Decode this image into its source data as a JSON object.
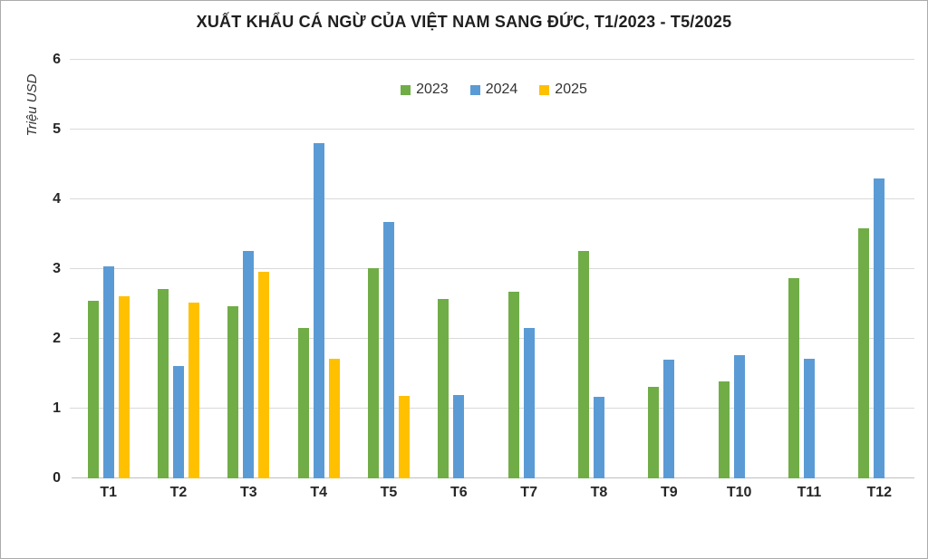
{
  "chart_data": {
    "type": "bar",
    "title": "XUẤT KHẨU CÁ NGỪ CỦA VIỆT NAM SANG ĐỨC, T1/2023 - T5/2025",
    "ylabel": "Triệu USD",
    "xlabel": "",
    "ylim": [
      0,
      6
    ],
    "ytick_labels": [
      "0",
      "1",
      "2",
      "3",
      "4",
      "5",
      "6"
    ],
    "grid": true,
    "legend_position": "top-center",
    "categories": [
      "T1",
      "T2",
      "T3",
      "T4",
      "T5",
      "T6",
      "T7",
      "T8",
      "T9",
      "T10",
      "T11",
      "T12"
    ],
    "series": [
      {
        "name": "2023",
        "color": "#70AD47",
        "values": [
          2.54,
          2.71,
          2.47,
          2.16,
          3.01,
          2.57,
          2.67,
          3.26,
          1.31,
          1.39,
          2.87,
          3.58
        ]
      },
      {
        "name": "2024",
        "color": "#5B9BD5",
        "values": [
          3.04,
          1.61,
          3.26,
          4.81,
          3.67,
          1.2,
          2.16,
          1.17,
          1.7,
          1.77,
          1.72,
          4.3
        ]
      },
      {
        "name": "2025",
        "color": "#FFC000",
        "values": [
          2.61,
          2.52,
          2.96,
          1.71,
          1.18,
          null,
          null,
          null,
          null,
          null,
          null,
          null
        ]
      }
    ]
  },
  "colors": {
    "gridline": "#d9d9d9",
    "axis_line": "#bfbfbf",
    "title_text": "#1f1f1f",
    "tick_text": "#262626",
    "legend_text": "#333333",
    "background": "#ffffff",
    "border": "#ababab"
  }
}
